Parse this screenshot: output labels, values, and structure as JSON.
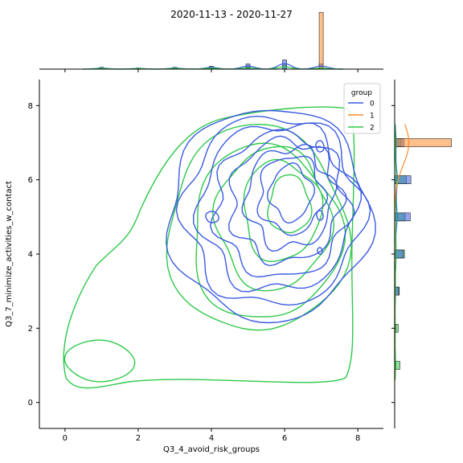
{
  "figure_title": "2020-11-13 - 2020-11-27",
  "chart_data": {
    "type": "joint-kde-histogram",
    "title": "2020-11-13 - 2020-11-27",
    "xlabel": "Q3_4_avoid_risk_groups",
    "ylabel": "Q3_7_minimize_activities_w_contact",
    "xlim": [
      -0.7,
      8.7
    ],
    "ylim": [
      -0.7,
      8.7
    ],
    "xticks": [
      0,
      2,
      4,
      6,
      8
    ],
    "yticks": [
      0,
      2,
      4,
      6,
      8
    ],
    "grid": false,
    "legend": {
      "title": "group",
      "placement": "top-right",
      "entries": [
        "0",
        "1",
        "2"
      ]
    },
    "colors": {
      "0": "#3a5be0",
      "1": "#ff8c2a",
      "2": "#2ec94a"
    },
    "marginal_x": {
      "bins": [
        1,
        2,
        3,
        4,
        5,
        6,
        7
      ],
      "series": [
        {
          "name": "0",
          "values": [
            0.03,
            0.02,
            0.03,
            0.05,
            0.09,
            0.16,
            0.09
          ]
        },
        {
          "name": "1",
          "values": [
            0.0,
            0.0,
            0.0,
            0.0,
            0.0,
            0.0,
            0.98
          ]
        },
        {
          "name": "2",
          "values": [
            0.02,
            0.015,
            0.02,
            0.03,
            0.04,
            0.07,
            0.03
          ]
        }
      ]
    },
    "marginal_y": {
      "bins": [
        1,
        2,
        3,
        4,
        5,
        6,
        7
      ],
      "series": [
        {
          "name": "0",
          "values": [
            0.02,
            0.02,
            0.07,
            0.15,
            0.27,
            0.28,
            0.16
          ]
        },
        {
          "name": "1",
          "values": [
            0.0,
            0.0,
            0.0,
            0.0,
            0.0,
            0.0,
            0.98
          ]
        },
        {
          "name": "2",
          "values": [
            0.09,
            0.06,
            0.08,
            0.17,
            0.18,
            0.2,
            0.11
          ]
        }
      ]
    },
    "kde_centers": [
      {
        "name": "0",
        "center": [
          6.0,
          5.0
        ]
      },
      {
        "name": "2",
        "center": [
          5.5,
          4.6
        ]
      }
    ]
  }
}
